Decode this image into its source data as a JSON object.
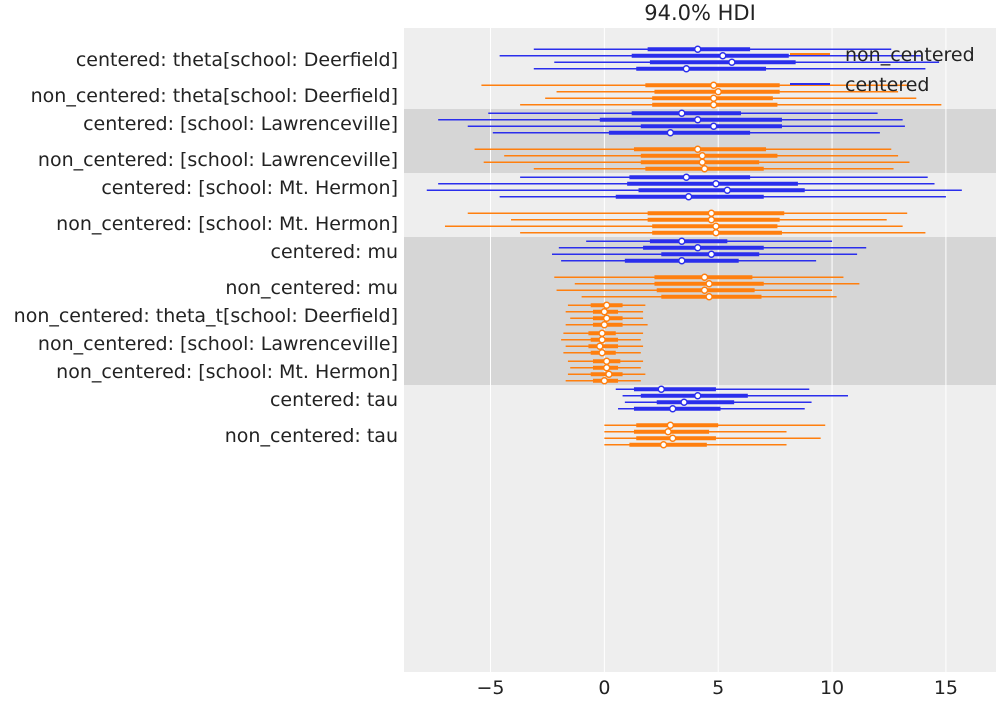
{
  "chart_data": {
    "type": "forest",
    "title": "94.0% HDI",
    "xticks": [
      -5,
      0,
      5,
      10,
      15
    ],
    "xlim": [
      -8.8,
      17.2
    ],
    "grid": true,
    "legend": {
      "placement": "top-right",
      "entries": [
        {
          "label": "non_centered",
          "color": "#ff7f0e"
        },
        {
          "label": "centered",
          "color": "#2a2eec"
        }
      ]
    },
    "bands": [
      "#eeeeee",
      "#d6d6d6",
      "#eeeeee",
      "#d6d6d6",
      "#eeeeee"
    ],
    "groups": [
      {
        "band": 0,
        "rows": [
          {
            "label": "centered: theta[school: Deerfield]",
            "model": "centered",
            "chains": [
              {
                "lo": -3.1,
                "q1": 1.9,
                "median": 4.1,
                "q3": 6.4,
                "hi": 12.6
              },
              {
                "lo": -4.6,
                "q1": 1.2,
                "median": 5.2,
                "q3": 8.1,
                "hi": 13.9
              },
              {
                "lo": -2.2,
                "q1": 2.0,
                "median": 5.6,
                "q3": 8.4,
                "hi": 14.7
              },
              {
                "lo": -3.1,
                "q1": 1.4,
                "median": 3.6,
                "q3": 7.1,
                "hi": 14.1
              }
            ]
          },
          {
            "label": "non_centered: theta[school: Deerfield]",
            "model": "non_centered",
            "chains": [
              {
                "lo": -5.4,
                "q1": 1.8,
                "median": 4.8,
                "q3": 7.7,
                "hi": 13.3
              },
              {
                "lo": -2.1,
                "q1": 2.2,
                "median": 5.0,
                "q3": 7.7,
                "hi": 12.9
              },
              {
                "lo": -2.6,
                "q1": 2.1,
                "median": 4.8,
                "q3": 7.4,
                "hi": 13.7
              },
              {
                "lo": -3.7,
                "q1": 2.1,
                "median": 4.8,
                "q3": 7.6,
                "hi": 14.8
              }
            ]
          }
        ]
      },
      {
        "band": 1,
        "rows": [
          {
            "label": "centered: [school: Lawrenceville]",
            "model": "centered",
            "chains": [
              {
                "lo": -5.1,
                "q1": 1.2,
                "median": 3.4,
                "q3": 6.0,
                "hi": 12.0
              },
              {
                "lo": -7.3,
                "q1": -0.2,
                "median": 4.1,
                "q3": 7.8,
                "hi": 13.1
              },
              {
                "lo": -6.0,
                "q1": 1.6,
                "median": 4.8,
                "q3": 7.8,
                "hi": 13.2
              },
              {
                "lo": -4.9,
                "q1": 0.2,
                "median": 2.9,
                "q3": 6.4,
                "hi": 12.1
              }
            ]
          },
          {
            "label": "non_centered: [school: Lawrenceville]",
            "model": "non_centered",
            "chains": [
              {
                "lo": -5.7,
                "q1": 1.3,
                "median": 4.1,
                "q3": 7.1,
                "hi": 12.6
              },
              {
                "lo": -4.4,
                "q1": 1.6,
                "median": 4.3,
                "q3": 7.6,
                "hi": 12.9
              },
              {
                "lo": -5.3,
                "q1": 1.6,
                "median": 4.3,
                "q3": 6.8,
                "hi": 13.4
              },
              {
                "lo": -3.1,
                "q1": 1.8,
                "median": 4.4,
                "q3": 7.0,
                "hi": 12.7
              }
            ]
          }
        ]
      },
      {
        "band": 2,
        "rows": [
          {
            "label": "centered: [school: Mt. Hermon]",
            "model": "centered",
            "chains": [
              {
                "lo": -3.7,
                "q1": 1.1,
                "median": 3.6,
                "q3": 6.4,
                "hi": 14.2
              },
              {
                "lo": -7.3,
                "q1": 1.0,
                "median": 4.9,
                "q3": 8.5,
                "hi": 14.5
              },
              {
                "lo": -7.8,
                "q1": 1.5,
                "median": 5.4,
                "q3": 8.8,
                "hi": 15.7
              },
              {
                "lo": -4.6,
                "q1": 0.5,
                "median": 3.7,
                "q3": 7.0,
                "hi": 15.0
              }
            ]
          },
          {
            "label": "non_centered: [school: Mt. Hermon]",
            "model": "non_centered",
            "chains": [
              {
                "lo": -6.0,
                "q1": 1.9,
                "median": 4.7,
                "q3": 7.9,
                "hi": 13.3
              },
              {
                "lo": -4.1,
                "q1": 1.9,
                "median": 4.7,
                "q3": 7.7,
                "hi": 12.4
              },
              {
                "lo": -7.0,
                "q1": 2.1,
                "median": 4.9,
                "q3": 7.6,
                "hi": 13.1
              },
              {
                "lo": -3.7,
                "q1": 2.1,
                "median": 4.9,
                "q3": 7.8,
                "hi": 14.1
              }
            ]
          }
        ]
      },
      {
        "band": 3,
        "rows": [
          {
            "label": "centered: mu",
            "model": "centered",
            "chains": [
              {
                "lo": -0.8,
                "q1": 2.0,
                "median": 3.4,
                "q3": 5.4,
                "hi": 10.0
              },
              {
                "lo": -2.0,
                "q1": 1.7,
                "median": 4.1,
                "q3": 7.0,
                "hi": 11.5
              },
              {
                "lo": -2.3,
                "q1": 2.5,
                "median": 4.7,
                "q3": 6.8,
                "hi": 11.1
              },
              {
                "lo": -1.9,
                "q1": 0.9,
                "median": 3.4,
                "q3": 5.9,
                "hi": 9.3
              }
            ]
          },
          {
            "label": "non_centered: mu",
            "model": "non_centered",
            "chains": [
              {
                "lo": -2.2,
                "q1": 2.2,
                "median": 4.4,
                "q3": 6.5,
                "hi": 10.5
              },
              {
                "lo": -1.3,
                "q1": 2.2,
                "median": 4.6,
                "q3": 7.0,
                "hi": 11.2
              },
              {
                "lo": -2.1,
                "q1": 2.3,
                "median": 4.4,
                "q3": 6.6,
                "hi": 10.0
              },
              {
                "lo": -1.0,
                "q1": 2.5,
                "median": 4.6,
                "q3": 6.9,
                "hi": 10.2
              }
            ]
          }
        ]
      },
      {
        "band": 3,
        "rows": [
          {
            "label": "non_centered: theta_t[school: Deerfield]",
            "model": "non_centered",
            "chains": [
              {
                "lo": -1.6,
                "q1": -0.6,
                "median": 0.1,
                "q3": 0.8,
                "hi": 1.8
              },
              {
                "lo": -1.7,
                "q1": -0.5,
                "median": 0.0,
                "q3": 0.6,
                "hi": 1.7
              },
              {
                "lo": -1.5,
                "q1": -0.5,
                "median": 0.1,
                "q3": 0.8,
                "hi": 1.7
              },
              {
                "lo": -1.7,
                "q1": -0.5,
                "median": 0.0,
                "q3": 0.8,
                "hi": 1.9
              }
            ]
          }
        ]
      },
      {
        "band": 3,
        "rows": [
          {
            "label": "non_centered: [school: Lawrenceville]",
            "model": "non_centered",
            "chains": [
              {
                "lo": -1.8,
                "q1": -0.7,
                "median": -0.1,
                "q3": 0.5,
                "hi": 1.7
              },
              {
                "lo": -1.9,
                "q1": -0.6,
                "median": -0.1,
                "q3": 0.6,
                "hi": 1.6
              },
              {
                "lo": -1.7,
                "q1": -0.7,
                "median": -0.2,
                "q3": 0.6,
                "hi": 1.7
              },
              {
                "lo": -1.8,
                "q1": -0.6,
                "median": -0.1,
                "q3": 0.5,
                "hi": 1.6
              }
            ]
          }
        ]
      },
      {
        "band": 3,
        "rows": [
          {
            "label": "non_centered: [school: Mt. Hermon]",
            "model": "non_centered",
            "chains": [
              {
                "lo": -1.6,
                "q1": -0.5,
                "median": 0.1,
                "q3": 0.7,
                "hi": 1.7
              },
              {
                "lo": -1.5,
                "q1": -0.5,
                "median": 0.1,
                "q3": 0.6,
                "hi": 1.6
              },
              {
                "lo": -1.6,
                "q1": -0.6,
                "median": 0.2,
                "q3": 0.8,
                "hi": 1.8
              },
              {
                "lo": -1.7,
                "q1": -0.5,
                "median": 0.0,
                "q3": 0.6,
                "hi": 1.6
              }
            ]
          }
        ]
      },
      {
        "band": 4,
        "rows": [
          {
            "label": "centered: tau",
            "model": "centered",
            "chains": [
              {
                "lo": 0.5,
                "q1": 1.3,
                "median": 2.5,
                "q3": 4.9,
                "hi": 9.0
              },
              {
                "lo": 0.8,
                "q1": 1.6,
                "median": 4.1,
                "q3": 6.3,
                "hi": 10.7
              },
              {
                "lo": 0.9,
                "q1": 2.3,
                "median": 3.5,
                "q3": 5.7,
                "hi": 9.1
              },
              {
                "lo": 0.6,
                "q1": 1.3,
                "median": 3.0,
                "q3": 5.1,
                "hi": 8.8
              }
            ]
          },
          {
            "label": "non_centered: tau",
            "model": "non_centered",
            "chains": [
              {
                "lo": 0.0,
                "q1": 1.4,
                "median": 2.9,
                "q3": 5.0,
                "hi": 9.7
              },
              {
                "lo": 0.0,
                "q1": 1.3,
                "median": 2.8,
                "q3": 4.6,
                "hi": 8.0
              },
              {
                "lo": 0.0,
                "q1": 1.4,
                "median": 3.0,
                "q3": 4.9,
                "hi": 9.5
              },
              {
                "lo": 0.0,
                "q1": 1.1,
                "median": 2.6,
                "q3": 4.5,
                "hi": 8.0
              }
            ]
          }
        ]
      }
    ]
  }
}
